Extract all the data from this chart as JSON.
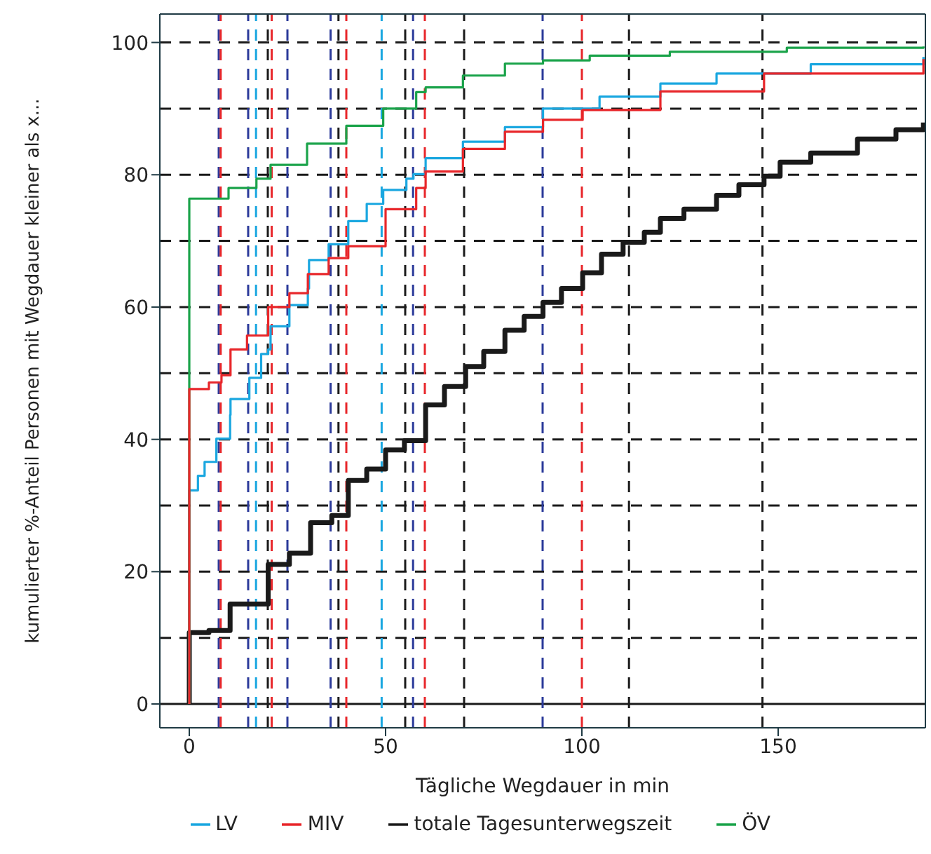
{
  "chart_data": {
    "type": "step",
    "xlabel": "Tägliche Wegdauer in min",
    "ylabel": "kumulierter %-Anteil Personen mit Wegdauer kleiner als x...",
    "xlim": [
      -7.5,
      187.5
    ],
    "ylim": [
      -3.6,
      104.3
    ],
    "xticks": [
      0,
      50,
      100,
      150
    ],
    "yticks": [
      0,
      20,
      40,
      60,
      80,
      100
    ],
    "legend": "bottom",
    "grid": false,
    "series": [
      {
        "name": "totale Tagesunterwegszeit",
        "color": "#1a1a1a",
        "x": [
          0,
          0,
          5,
          10.4,
          10.4,
          20.1,
          20.1,
          25.5,
          30.9,
          36.3,
          40.5,
          45.2,
          50,
          54.8,
          60.2,
          65,
          70.4,
          75,
          80.4,
          85.3,
          90.1,
          94.8,
          100.2,
          105,
          110.5,
          115.9,
          120,
          126,
          134.3,
          140,
          146.4,
          150.5,
          158.3,
          170.2,
          180,
          187
        ],
        "values": [
          0,
          10.8,
          11.1,
          13.2,
          15.1,
          17.5,
          21.1,
          22.8,
          27.4,
          28.5,
          33.8,
          35.5,
          38.4,
          39.8,
          45.2,
          48,
          51,
          53.3,
          56.5,
          58.6,
          60.7,
          62.8,
          65.2,
          68,
          69.8,
          71.3,
          73.4,
          74.8,
          76.9,
          78.5,
          79.8,
          81.9,
          83.3,
          85.4,
          86.8,
          87.9
        ]
      },
      {
        "name": "LV",
        "color": "#1aa7e0",
        "x": [
          0,
          0,
          2.2,
          3.9,
          6.9,
          10.4,
          10.5,
          15.3,
          18.3,
          20.1,
          20.7,
          25.5,
          30.2,
          30.5,
          35.5,
          40.5,
          45.2,
          49.4,
          55.3,
          57.1,
          60.2,
          69.7,
          80.4,
          90.1,
          104.5,
          120,
          120,
          134.3,
          158.3,
          187
        ],
        "values": [
          0,
          32.3,
          34.5,
          36.6,
          40.1,
          43.7,
          46.1,
          49.3,
          52.9,
          53.6,
          57.1,
          60.3,
          62.8,
          67.1,
          69.5,
          73,
          75.6,
          77.7,
          79.4,
          80.1,
          82.5,
          85,
          87.2,
          90,
          91.8,
          92.9,
          93.8,
          95.3,
          96.7,
          97.8
        ]
      },
      {
        "name": "ÖV",
        "color": "#1aa34a",
        "x": [
          0,
          0,
          10,
          17.1,
          20.7,
          30,
          40,
          49.4,
          57.8,
          60.2,
          69.7,
          80.4,
          90.1,
          102,
          122.4,
          152.2,
          187
        ],
        "values": [
          0,
          76.4,
          78,
          79.4,
          81.5,
          84.7,
          87.4,
          90,
          92.5,
          93.2,
          95,
          96.8,
          97.3,
          98,
          98.6,
          99.2,
          99.4
        ]
      },
      {
        "name": "MIV",
        "color": "#e8262a",
        "x": [
          0,
          0,
          5,
          8.2,
          10.5,
          14.7,
          20.1,
          25.5,
          30.2,
          35.5,
          40.5,
          50,
          57.8,
          60.2,
          60.2,
          69.7,
          80.4,
          90.1,
          100.2,
          120,
          146.4,
          187
        ],
        "values": [
          0,
          47.6,
          48.6,
          49.7,
          53.6,
          55.7,
          60,
          62.1,
          65,
          67.4,
          69.2,
          74.8,
          78,
          78.3,
          80.5,
          83.9,
          86.5,
          88.3,
          89.8,
          92.6,
          95.3,
          97.5
        ]
      }
    ],
    "ref_lines": [
      {
        "axis": "y",
        "value": 0,
        "color": "#1a1a1a",
        "line_style": "solid"
      },
      {
        "axis": "y",
        "value": 10,
        "color": "#1a1a1a",
        "line_style": "dashed"
      },
      {
        "axis": "y",
        "value": 20,
        "color": "#1a1a1a",
        "line_style": "dashed"
      },
      {
        "axis": "y",
        "value": 30,
        "color": "#1a1a1a",
        "line_style": "dashed"
      },
      {
        "axis": "y",
        "value": 40,
        "color": "#1a1a1a",
        "line_style": "dashed"
      },
      {
        "axis": "y",
        "value": 50,
        "color": "#1a1a1a",
        "line_style": "dashed"
      },
      {
        "axis": "y",
        "value": 60,
        "color": "#1a1a1a",
        "line_style": "dashed"
      },
      {
        "axis": "y",
        "value": 70,
        "color": "#1a1a1a",
        "line_style": "dashed"
      },
      {
        "axis": "y",
        "value": 80,
        "color": "#1a1a1a",
        "line_style": "dashed"
      },
      {
        "axis": "y",
        "value": 90,
        "color": "#1a1a1a",
        "line_style": "dashed"
      },
      {
        "axis": "y",
        "value": 100,
        "color": "#1a1a1a",
        "line_style": "dashed"
      },
      {
        "axis": "x",
        "value": 20,
        "color": "#1a1a1a",
        "line_style": "dashed"
      },
      {
        "axis": "x",
        "value": 38,
        "color": "#1a1a1a",
        "line_style": "dashed"
      },
      {
        "axis": "x",
        "value": 55,
        "color": "#1a1a1a",
        "line_style": "dashed"
      },
      {
        "axis": "x",
        "value": 70,
        "color": "#1a1a1a",
        "line_style": "dashed"
      },
      {
        "axis": "x",
        "value": 112,
        "color": "#1a1a1a",
        "line_style": "dashed"
      },
      {
        "axis": "x",
        "value": 146,
        "color": "#1a1a1a",
        "line_style": "dashed"
      },
      {
        "axis": "x",
        "value": 7.5,
        "color": "#2b3a9a",
        "line_style": "dashed"
      },
      {
        "axis": "x",
        "value": 15,
        "color": "#2b3a9a",
        "line_style": "dashed"
      },
      {
        "axis": "x",
        "value": 25,
        "color": "#2b3a9a",
        "line_style": "dashed"
      },
      {
        "axis": "x",
        "value": 36,
        "color": "#2b3a9a",
        "line_style": "dashed"
      },
      {
        "axis": "x",
        "value": 57,
        "color": "#2b3a9a",
        "line_style": "dashed"
      },
      {
        "axis": "x",
        "value": 90,
        "color": "#2b3a9a",
        "line_style": "dashed"
      },
      {
        "axis": "x",
        "value": 8,
        "color": "#e8262a",
        "line_style": "dashed"
      },
      {
        "axis": "x",
        "value": 21,
        "color": "#e8262a",
        "line_style": "dashed"
      },
      {
        "axis": "x",
        "value": 40,
        "color": "#e8262a",
        "line_style": "dashed"
      },
      {
        "axis": "x",
        "value": 60,
        "color": "#e8262a",
        "line_style": "dashed"
      },
      {
        "axis": "x",
        "value": 100,
        "color": "#e8262a",
        "line_style": "dashed"
      },
      {
        "axis": "x",
        "value": 17,
        "color": "#1aa7e0",
        "line_style": "dashed"
      },
      {
        "axis": "x",
        "value": 49,
        "color": "#1aa7e0",
        "line_style": "dashed"
      }
    ]
  }
}
